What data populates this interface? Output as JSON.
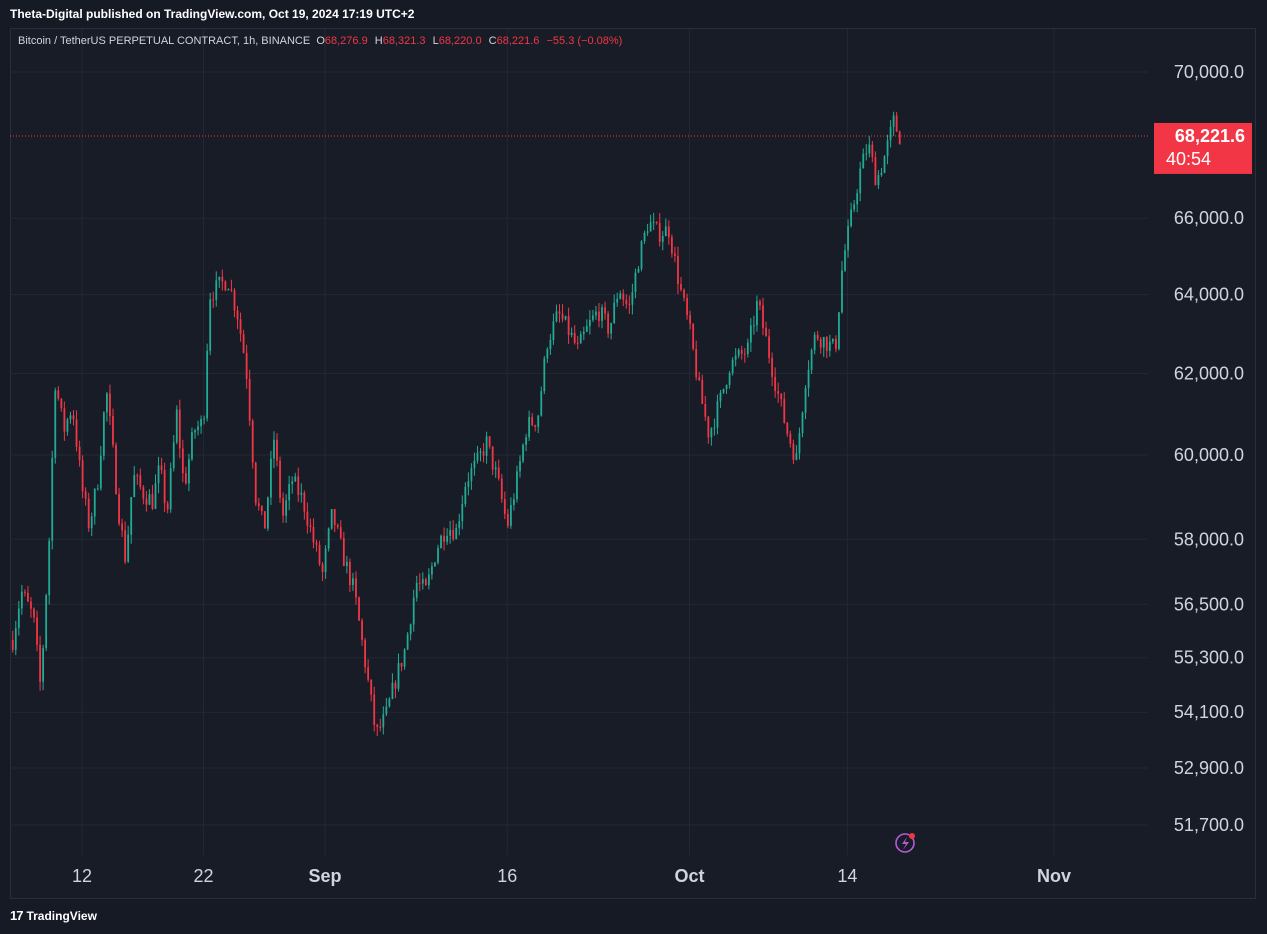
{
  "header": {
    "published": "Theta-Digital published on TradingView.com, Oct 19, 2024 17:19 UTC+2"
  },
  "legend": {
    "symbol": "Bitcoin / TetherUS PERPETUAL CONTRACT, 1h, BINANCE",
    "open_label": "O",
    "open": "68,276.9",
    "high_label": "H",
    "high": "68,321.3",
    "low_label": "L",
    "low": "68,220.0",
    "close_label": "C",
    "close": "68,221.6",
    "change": "−55.3 (−0.08%)"
  },
  "price_badge": {
    "price": "68,221.6",
    "countdown": "40:54"
  },
  "footer": {
    "brand": "TradingView",
    "logo_text": "17"
  },
  "colors": {
    "up": "#22ab94",
    "down": "#f23645",
    "background": "#181c27",
    "grid": "#232733",
    "text": "#d1d4dc"
  },
  "chart_data": {
    "type": "candlestick",
    "title": "Bitcoin / TetherUS PERPETUAL CONTRACT, 1h, BINANCE",
    "scale": "log",
    "y_ticks": [
      70000,
      66000,
      64000,
      62000,
      60000,
      58000,
      56500,
      55300,
      54100,
      52900,
      51700
    ],
    "y_tick_labels": [
      "70,000.0",
      "66,000.0",
      "64,000.0",
      "62,000.0",
      "60,000.0",
      "58,000.0",
      "56,500.0",
      "55,300.0",
      "54,100.0",
      "52,900.0",
      "51,700.0"
    ],
    "x_tick_labels": [
      "12",
      "22",
      "Sep",
      "16",
      "Oct",
      "14",
      "Nov"
    ],
    "x_tick_bold": [
      false,
      false,
      true,
      false,
      true,
      false,
      true
    ],
    "x_tick_days": [
      12,
      22,
      32,
      47,
      62,
      75,
      92
    ],
    "x_range_days": [
      6.2,
      100.5
    ],
    "last_price": 68221.6,
    "last_price_label": "68,221.6",
    "price_path": [
      [
        6.3,
        55700
      ],
      [
        7.0,
        56800
      ],
      [
        8.0,
        56200
      ],
      [
        8.6,
        54600
      ],
      [
        9.3,
        58000
      ],
      [
        9.8,
        61800
      ],
      [
        10.5,
        60600
      ],
      [
        11.2,
        61200
      ],
      [
        12.0,
        59200
      ],
      [
        12.6,
        58300
      ],
      [
        13.3,
        59400
      ],
      [
        14.0,
        61600
      ],
      [
        14.5,
        60200
      ],
      [
        15.0,
        58700
      ],
      [
        15.6,
        57500
      ],
      [
        16.2,
        59500
      ],
      [
        17.0,
        59100
      ],
      [
        17.8,
        58900
      ],
      [
        18.4,
        59700
      ],
      [
        19.0,
        58600
      ],
      [
        19.8,
        61000
      ],
      [
        20.4,
        59200
      ],
      [
        21.2,
        60600
      ],
      [
        22.0,
        60800
      ],
      [
        22.5,
        64000
      ],
      [
        23.2,
        64200
      ],
      [
        24.0,
        64400
      ],
      [
        24.8,
        63500
      ],
      [
        25.5,
        62200
      ],
      [
        26.3,
        59000
      ],
      [
        27.0,
        58200
      ],
      [
        27.8,
        60400
      ],
      [
        28.5,
        58500
      ],
      [
        29.3,
        59400
      ],
      [
        30.2,
        58900
      ],
      [
        31.0,
        58000
      ],
      [
        31.8,
        57200
      ],
      [
        32.6,
        58600
      ],
      [
        33.5,
        57600
      ],
      [
        34.4,
        56800
      ],
      [
        35.3,
        55200
      ],
      [
        36.2,
        53600
      ],
      [
        37.0,
        54000
      ],
      [
        37.8,
        54800
      ],
      [
        38.6,
        55500
      ],
      [
        39.5,
        57000
      ],
      [
        40.3,
        56800
      ],
      [
        41.2,
        57800
      ],
      [
        42.0,
        58300
      ],
      [
        42.8,
        58200
      ],
      [
        43.6,
        59400
      ],
      [
        44.5,
        59800
      ],
      [
        45.3,
        60300
      ],
      [
        46.2,
        59400
      ],
      [
        47.0,
        58300
      ],
      [
        47.8,
        59400
      ],
      [
        48.6,
        60700
      ],
      [
        49.5,
        60900
      ],
      [
        50.3,
        62800
      ],
      [
        51.2,
        63500
      ],
      [
        52.0,
        63100
      ],
      [
        52.8,
        62600
      ],
      [
        53.7,
        63200
      ],
      [
        54.5,
        63600
      ],
      [
        55.4,
        63100
      ],
      [
        56.2,
        64200
      ],
      [
        57.0,
        63600
      ],
      [
        57.8,
        64900
      ],
      [
        58.6,
        65900
      ],
      [
        59.4,
        65600
      ],
      [
        60.3,
        65700
      ],
      [
        61.2,
        64200
      ],
      [
        62.0,
        63100
      ],
      [
        62.8,
        61600
      ],
      [
        63.6,
        60500
      ],
      [
        64.5,
        61300
      ],
      [
        65.3,
        62200
      ],
      [
        66.0,
        62400
      ],
      [
        66.8,
        62600
      ],
      [
        67.6,
        63800
      ],
      [
        68.4,
        62700
      ],
      [
        69.2,
        61600
      ],
      [
        70.0,
        60600
      ],
      [
        70.8,
        59900
      ],
      [
        71.6,
        62000
      ],
      [
        72.4,
        63000
      ],
      [
        73.2,
        62800
      ],
      [
        74.0,
        62600
      ],
      [
        74.6,
        64800
      ],
      [
        75.3,
        66000
      ],
      [
        76.0,
        67200
      ],
      [
        76.7,
        68000
      ],
      [
        77.4,
        67000
      ],
      [
        78.1,
        67700
      ],
      [
        78.8,
        68600
      ],
      [
        79.3,
        68221.6
      ]
    ]
  }
}
